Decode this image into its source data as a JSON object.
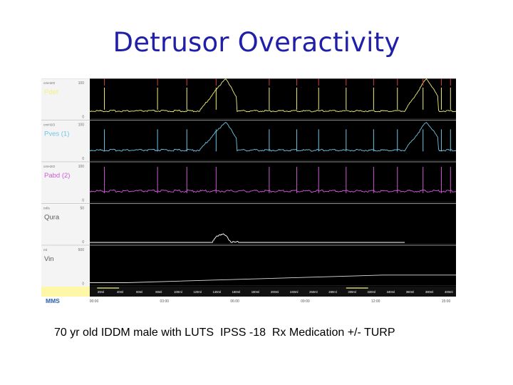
{
  "slide": {
    "title": "Detrusor Overactivity",
    "caption": "70 yr old IDDM male with LUTS  IPSS -18  Rx Medication +/- TURP"
  },
  "chart_data": {
    "type": "line",
    "title": "Detrusor Overactivity",
    "panels": [
      {
        "name": "Pdet",
        "color": "#f2f27a",
        "unit": "cmH2O",
        "top_tick": "100",
        "bottom_tick": "0"
      },
      {
        "name": "Pves (1)",
        "color": "#6fc6e8",
        "unit": "cmH2O",
        "top_tick": "100",
        "bottom_tick": "0"
      },
      {
        "name": "Pabd (2)",
        "color": "#d05ad8",
        "unit": "cmH2O",
        "top_tick": "100",
        "bottom_tick": "0"
      },
      {
        "name": "Qura",
        "color": "#ffffff",
        "unit": "ml/s",
        "top_tick": "50",
        "bottom_tick": "0"
      },
      {
        "name": "Vin",
        "color": "#ffffff",
        "unit": "ml",
        "top_tick": "500",
        "bottom_tick": "0"
      }
    ],
    "event_markers": [
      "20ml",
      "40ml",
      "60ml",
      "80ml",
      "100ml",
      "120ml",
      "140ml",
      "160ml",
      "180ml",
      "200ml",
      "240ml",
      "250ml",
      "280ml",
      "300ml",
      "320ml",
      "340ml",
      "360ml",
      "380ml",
      "400ml"
    ],
    "time_labels": [
      "00:00",
      "03:00",
      "06:00",
      "09:00",
      "12:00",
      "15:00"
    ],
    "vin_ramp": {
      "start_fraction": 0.1,
      "end_fraction": 0.8,
      "start_value": 0,
      "end_value": 0.22
    },
    "logo": "MMS"
  }
}
